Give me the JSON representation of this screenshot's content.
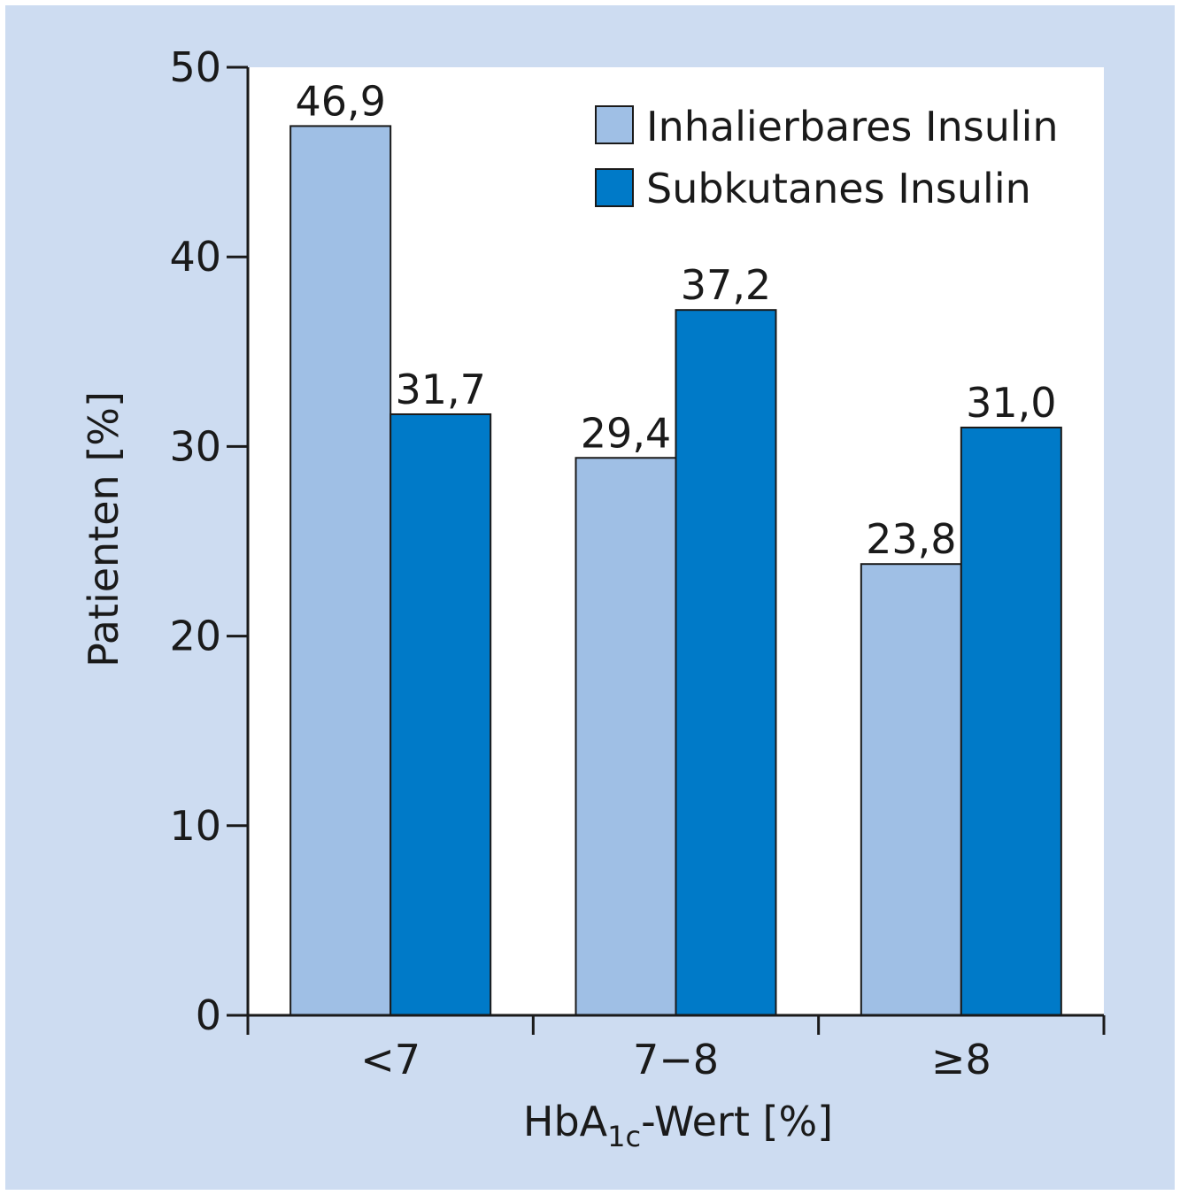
{
  "chart_data": {
    "type": "bar",
    "categories": [
      "<7",
      "7−8",
      "≥8"
    ],
    "series": [
      {
        "name": "Inhalierbares Insulin",
        "values": [
          46.9,
          29.4,
          23.8
        ],
        "labels": [
          "46,9",
          "29,4",
          "23,8"
        ],
        "color": "#9fbfe5"
      },
      {
        "name": "Subkutanes Insulin",
        "values": [
          31.7,
          37.2,
          31.0
        ],
        "labels": [
          "31,7",
          "37,2",
          "31,0"
        ],
        "color": "#007ac8"
      }
    ],
    "ylabel": "Patienten [%]",
    "xlabel": {
      "main": "HbA",
      "sub": "1c",
      "suffix": "-Wert [%]"
    },
    "ylim": [
      0,
      50
    ],
    "yticks": [
      "0",
      "10",
      "20",
      "30",
      "40",
      "50"
    ],
    "grid": false,
    "legend": "top-right"
  },
  "colors": {
    "frame": "#cddcf1",
    "plot_bg": "#ffffff",
    "axis": "#1a1a1a"
  }
}
